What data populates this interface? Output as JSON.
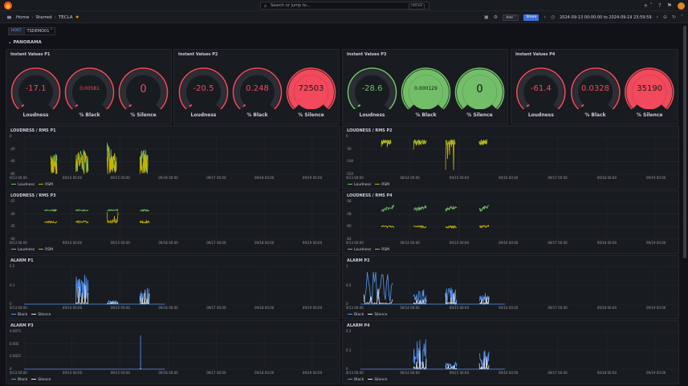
{
  "topbar": {
    "search_placeholder": "Search or jump to...",
    "search_shortcut": "ctrl+k",
    "plus_icon": "+ ˅",
    "help_icon": "?",
    "news_icon": "⚑"
  },
  "breadcrumb": {
    "home": "Home",
    "starred": "Starred",
    "current": "TECLA",
    "sep": "›"
  },
  "toolbar": {
    "add_label": "Add ˅",
    "share_label": "Share",
    "time_range": "2024-09-13 00:00:00 to 2024-09-19 23:59:59",
    "prev": "‹",
    "next": "›",
    "zoom": "⊖",
    "refresh": "↻",
    "collapse": "˄"
  },
  "variables": {
    "host_label": "HOST",
    "host_value": "TSDEMO01 ˅"
  },
  "row": {
    "title": "⌄ PANORAMA"
  },
  "colors": {
    "red": "#f2495c",
    "green": "#73bf69",
    "yellow": "#c8b400",
    "blue": "#5794f2",
    "white": "#e8e8e8"
  },
  "instant_panels": [
    {
      "title": "Instant Values P1",
      "gauges": [
        {
          "value": "-17.1",
          "label": "Loudness",
          "color": "red",
          "fill": 0.0
        },
        {
          "value": "0.00581",
          "label": "% Black",
          "color": "red",
          "fill": 0.0
        },
        {
          "value": "0",
          "label": "% Silence",
          "color": "red",
          "fill": 0.0
        }
      ]
    },
    {
      "title": "Instant Values P2",
      "gauges": [
        {
          "value": "-20.5",
          "label": "Loudness",
          "color": "red",
          "fill": 0.0
        },
        {
          "value": "0.248",
          "label": "% Black",
          "color": "red",
          "fill": 0.0
        },
        {
          "value": "72503",
          "label": "% Silence",
          "color": "red",
          "fill": 1.0
        }
      ]
    },
    {
      "title": "Instant Values P3",
      "gauges": [
        {
          "value": "-28.6",
          "label": "Loudness",
          "color": "green",
          "fill": 0.0
        },
        {
          "value": "0.000129",
          "label": "% Black",
          "color": "green",
          "fill": 1.0
        },
        {
          "value": "0",
          "label": "% Silence",
          "color": "green",
          "fill": 1.0
        }
      ]
    },
    {
      "title": "Instant Values P4",
      "gauges": [
        {
          "value": "-61.4",
          "label": "Loudness",
          "color": "red",
          "fill": 0.0
        },
        {
          "value": "0.0328",
          "label": "% Black",
          "color": "red",
          "fill": 0.0
        },
        {
          "value": "35190",
          "label": "% Silence",
          "color": "red",
          "fill": 1.0
        }
      ]
    }
  ],
  "x_ticks": [
    "9/13 00:00",
    "09/14 00:00",
    "09/15 00:00",
    "09/16 00:00",
    "09/17 00:00",
    "09/18 00:00",
    "09/19 00:00"
  ],
  "chart_data": [
    {
      "type": "line",
      "title": "LOUDNESS / RMS P1",
      "ylim": [
        -60,
        0
      ],
      "yticks": [
        "0",
        "-20",
        "-40",
        "-60"
      ],
      "series": [
        {
          "name": "Loudness",
          "color": "green"
        },
        {
          "name": "RSM",
          "color": "yellow"
        }
      ],
      "bursts": [
        [
          0.085,
          0.105,
          0.55
        ],
        [
          0.165,
          0.205,
          0.7
        ],
        [
          0.265,
          0.295,
          0.85
        ],
        [
          0.37,
          0.395,
          0.65
        ]
      ],
      "kind": "loud"
    },
    {
      "type": "line",
      "title": "LOUDNESS / RMS P2",
      "ylim": [
        -150,
        0
      ],
      "yticks": [
        "0",
        "-50",
        "-100",
        "-150"
      ],
      "series": [
        {
          "name": "Loudness",
          "color": "green"
        },
        {
          "name": "RSM",
          "color": "yellow"
        }
      ],
      "bursts": [
        [
          0.065,
          0.095,
          0.2
        ],
        [
          0.165,
          0.205,
          0.3
        ],
        [
          0.265,
          0.295,
          0.95
        ],
        [
          0.37,
          0.395,
          0.2
        ]
      ],
      "kind": "loud2"
    },
    {
      "type": "line",
      "title": "LOUDNESS / RMS P3",
      "ylim": [
        -40,
        -25
      ],
      "yticks": [
        "-25",
        "-30",
        "-35",
        "-40"
      ],
      "series": [
        {
          "name": "Loudness",
          "color": "green"
        },
        {
          "name": "RSM",
          "color": "yellow"
        }
      ],
      "bursts": [
        [
          0.065,
          0.105,
          0.3
        ],
        [
          0.165,
          0.205,
          0.3
        ],
        [
          0.265,
          0.3,
          0.9
        ],
        [
          0.37,
          0.4,
          0.3
        ]
      ],
      "kind": "bands"
    },
    {
      "type": "line",
      "title": "LOUDNESS / RMS P4",
      "ylim": [
        -65,
        -55
      ],
      "yticks": [
        "-56",
        "-58",
        "-60",
        "-62"
      ],
      "series": [
        {
          "name": "Loudness",
          "color": "green"
        },
        {
          "name": "RSM",
          "color": "yellow"
        }
      ],
      "bursts": [
        [
          0.065,
          0.105,
          0.3
        ],
        [
          0.165,
          0.205,
          0.3
        ],
        [
          0.265,
          0.3,
          0.3
        ],
        [
          0.37,
          0.4,
          0.3
        ]
      ],
      "kind": "bands2"
    },
    {
      "type": "line",
      "title": "ALARM P1",
      "ylim": [
        0,
        0.25
      ],
      "yticks": [
        "0.2",
        "0.1",
        "0"
      ],
      "series": [
        {
          "name": "Black",
          "color": "blue"
        },
        {
          "name": "Silence",
          "color": "white"
        }
      ],
      "bursts": [
        [
          0.165,
          0.205,
          0.8
        ],
        [
          0.265,
          0.3,
          0.1
        ],
        [
          0.37,
          0.4,
          0.45
        ]
      ],
      "kind": "alarm"
    },
    {
      "type": "line",
      "title": "ALARM P2",
      "ylim": [
        0,
        1
      ],
      "yticks": [
        "1",
        "0.5",
        "0"
      ],
      "series": [
        {
          "name": "Black",
          "color": "blue"
        },
        {
          "name": "Silence",
          "color": "white"
        }
      ],
      "bursts": [
        [
          0.01,
          0.1,
          0.9
        ],
        [
          0.165,
          0.205,
          0.4
        ],
        [
          0.265,
          0.3,
          0.45
        ],
        [
          0.37,
          0.4,
          0.3
        ]
      ],
      "kind": "alarm2"
    },
    {
      "type": "line",
      "title": "ALARM P3",
      "ylim": [
        0,
        0.008
      ],
      "yticks": [
        "0.0075",
        "0.005",
        "0.0025",
        "0"
      ],
      "series": [
        {
          "name": "Black",
          "color": "blue"
        },
        {
          "name": "Silence",
          "color": "white"
        }
      ],
      "bursts": [
        [
          0.37,
          0.372,
          0.9
        ]
      ],
      "kind": "spike"
    },
    {
      "type": "line",
      "title": "ALARM P4",
      "ylim": [
        0,
        0.25
      ],
      "yticks": [
        "0.2",
        "0.1",
        "0"
      ],
      "series": [
        {
          "name": "Black",
          "color": "blue"
        },
        {
          "name": "Silence",
          "color": "white"
        }
      ],
      "bursts": [
        [
          0.165,
          0.205,
          0.8
        ],
        [
          0.265,
          0.3,
          0.2
        ],
        [
          0.37,
          0.4,
          0.5
        ]
      ],
      "kind": "alarm"
    }
  ]
}
